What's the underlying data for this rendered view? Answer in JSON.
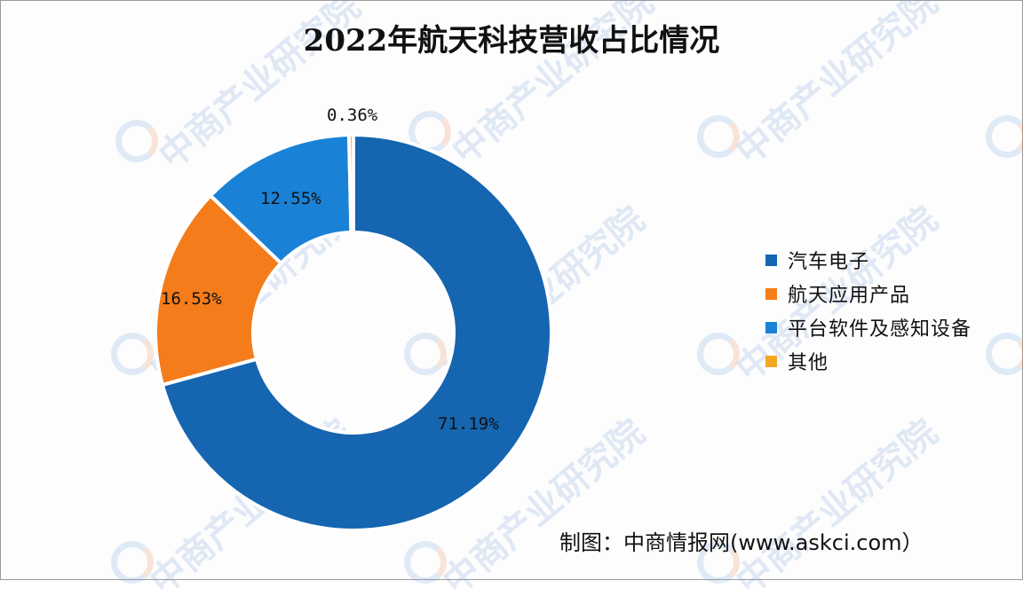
{
  "chart_data": {
    "type": "pie",
    "variant": "donut",
    "title": "2022年航天科技营收占比情况",
    "categories": [
      "汽车电子",
      "航天应用产品",
      "平台软件及感知设备",
      "其他"
    ],
    "values": [
      71.19,
      16.53,
      12.55,
      0.36
    ],
    "labels": [
      "71.19%",
      "16.53%",
      "12.55%",
      "0.36%"
    ],
    "colors": [
      "#1565b0",
      "#f57c1a",
      "#1a82d6",
      "#f5a623"
    ],
    "legend_position": "right",
    "start_angle": "12 o'clock, clockwise"
  },
  "title": "2022年航天科技营收占比情况",
  "legend": [
    {
      "label": "汽车电子",
      "color": "#1565b0"
    },
    {
      "label": "航天应用产品",
      "color": "#f57c1a"
    },
    {
      "label": "平台软件及感知设备",
      "color": "#1a82d6"
    },
    {
      "label": "其他",
      "color": "#f5a623"
    }
  ],
  "slice_labels": {
    "auto": "71.19%",
    "aerospace": "16.53%",
    "platform": "12.55%",
    "other": "0.36%"
  },
  "source": "制图：中商情报网(www.askci.com）",
  "watermark": "中商产业研究院"
}
